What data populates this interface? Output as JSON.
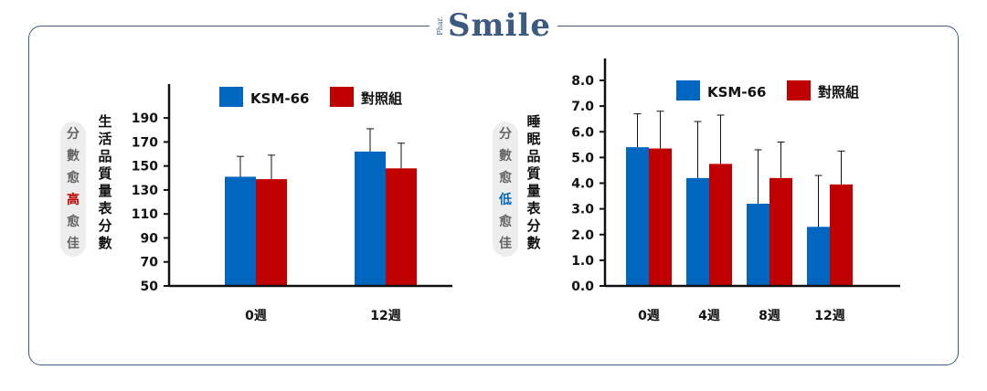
{
  "brand": {
    "small": "Phar.",
    "name": "Smile"
  },
  "colors": {
    "ksm": "#0066c0",
    "ctrl": "#c00000",
    "border": "#3d5a80",
    "high": "#c00000",
    "low": "#0066c0"
  },
  "left_note": {
    "chars": [
      "分",
      "數",
      "愈",
      "高",
      "愈",
      "佳"
    ],
    "highlight_index": 3
  },
  "right_note": {
    "chars": [
      "分",
      "數",
      "愈",
      "低",
      "愈",
      "佳"
    ],
    "highlight_index": 3
  },
  "chart_data": [
    {
      "type": "bar",
      "ylabel": "生活品質量表分數",
      "categories": [
        "0週",
        "12週"
      ],
      "ylim": [
        50,
        200
      ],
      "yticks": [
        "50",
        "70",
        "90",
        "110",
        "130",
        "150",
        "170",
        "190"
      ],
      "series": [
        {
          "name": "KSM-66",
          "values": [
            141,
            162
          ],
          "errors": [
            17,
            19
          ]
        },
        {
          "name": "對照組",
          "values": [
            139,
            148
          ],
          "errors": [
            20,
            21
          ]
        }
      ],
      "legend": "top"
    },
    {
      "type": "bar",
      "ylabel": "睡眠品質量表分數",
      "categories": [
        "0週",
        "4週",
        "8週",
        "12週"
      ],
      "ylim": [
        0,
        8
      ],
      "yticks": [
        "0.0",
        "1.0",
        "2.0",
        "3.0",
        "4.0",
        "5.0",
        "6.0",
        "7.0",
        "8.0"
      ],
      "series": [
        {
          "name": "KSM-66",
          "values": [
            5.4,
            4.2,
            3.2,
            2.3
          ],
          "errors": [
            1.3,
            2.2,
            2.1,
            2.0
          ]
        },
        {
          "name": "對照組",
          "values": [
            5.35,
            4.75,
            4.2,
            3.95
          ],
          "errors": [
            1.45,
            1.9,
            1.4,
            1.3
          ]
        }
      ],
      "legend": "top"
    }
  ]
}
